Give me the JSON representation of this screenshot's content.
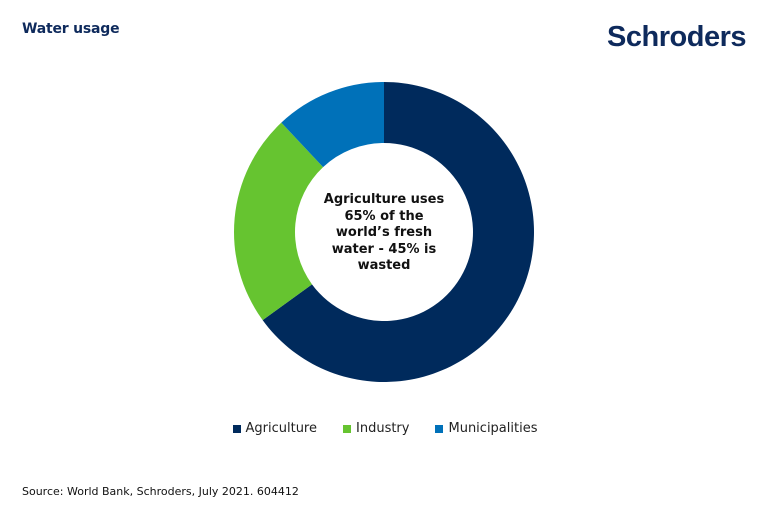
{
  "header": {
    "title": "Water usage",
    "logo_text": "Schroders"
  },
  "chart_data": {
    "type": "pie",
    "donut": true,
    "categories": [
      "Agriculture",
      "Industry",
      "Municipalities"
    ],
    "values": [
      65,
      23,
      12
    ],
    "colors": [
      "#002a5c",
      "#66c430",
      "#0071b9"
    ],
    "center_text": [
      "Agriculture uses",
      "65% of the",
      "world’s fresh",
      "water - 45% is",
      "wasted"
    ],
    "legend_placement": "bottom"
  },
  "legend": {
    "items": [
      {
        "label": "Agriculture",
        "color": "#002a5c"
      },
      {
        "label": "Industry",
        "color": "#66c430"
      },
      {
        "label": "Municipalities",
        "color": "#0071b9"
      }
    ]
  },
  "footer": {
    "source": "Source: World Bank, Schroders, July 2021. 604412"
  }
}
